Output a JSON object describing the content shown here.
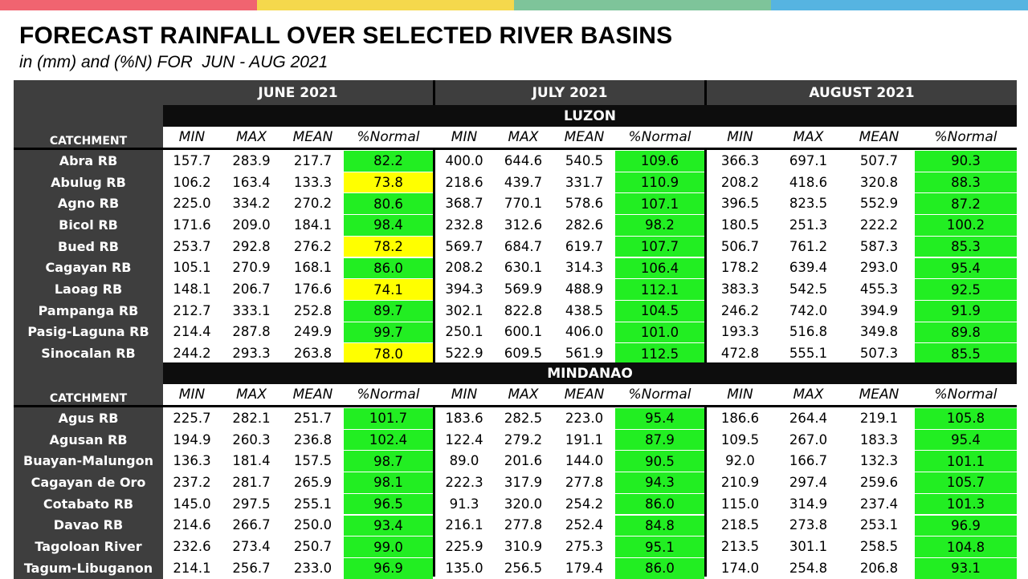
{
  "title": "FORECAST RAINFALL OVER SELECTED RIVER BASINS",
  "subtitle": "in (mm) and (%N) FOR  JUN - AUG 2021",
  "accent_colors": [
    "#f06470",
    "#f5d84c",
    "#7ec49a",
    "#56b4e1"
  ],
  "status_colors": {
    "near_normal": "#22ee22",
    "below_normal": "#ffff00"
  },
  "months": [
    "JUNE 2021",
    "JULY 2021",
    "AUGUST 2021"
  ],
  "column_labels": [
    "MIN",
    "MAX",
    "MEAN",
    "%Normal"
  ],
  "catchment_label": "CATCHMENT",
  "sections": [
    {
      "name": "LUZON",
      "rows": [
        {
          "basin": "Abra RB",
          "values": [
            [
              "157.7",
              "283.9",
              "217.7",
              "82.2"
            ],
            [
              "400.0",
              "644.6",
              "540.5",
              "109.6"
            ],
            [
              "366.3",
              "697.1",
              "507.7",
              "90.3"
            ]
          ]
        },
        {
          "basin": "Abulug RB",
          "values": [
            [
              "106.2",
              "163.4",
              "133.3",
              "73.8"
            ],
            [
              "218.6",
              "439.7",
              "331.7",
              "110.9"
            ],
            [
              "208.2",
              "418.6",
              "320.8",
              "88.3"
            ]
          ]
        },
        {
          "basin": "Agno RB",
          "values": [
            [
              "225.0",
              "334.2",
              "270.2",
              "80.6"
            ],
            [
              "368.7",
              "770.1",
              "578.6",
              "107.1"
            ],
            [
              "396.5",
              "823.5",
              "552.9",
              "87.2"
            ]
          ]
        },
        {
          "basin": "Bicol RB",
          "values": [
            [
              "171.6",
              "209.0",
              "184.1",
              "98.4"
            ],
            [
              "232.8",
              "312.6",
              "282.6",
              "98.2"
            ],
            [
              "180.5",
              "251.3",
              "222.2",
              "100.2"
            ]
          ]
        },
        {
          "basin": "Bued RB",
          "values": [
            [
              "253.7",
              "292.8",
              "276.2",
              "78.2"
            ],
            [
              "569.7",
              "684.7",
              "619.7",
              "107.7"
            ],
            [
              "506.7",
              "761.2",
              "587.3",
              "85.3"
            ]
          ]
        },
        {
          "basin": "Cagayan RB",
          "values": [
            [
              "105.1",
              "270.9",
              "168.1",
              "86.0"
            ],
            [
              "208.2",
              "630.1",
              "314.3",
              "106.4"
            ],
            [
              "178.2",
              "639.4",
              "293.0",
              "95.4"
            ]
          ]
        },
        {
          "basin": "Laoag RB",
          "values": [
            [
              "148.1",
              "206.7",
              "176.6",
              "74.1"
            ],
            [
              "394.3",
              "569.9",
              "488.9",
              "112.1"
            ],
            [
              "383.3",
              "542.5",
              "455.3",
              "92.5"
            ]
          ]
        },
        {
          "basin": "Pampanga RB",
          "values": [
            [
              "212.7",
              "333.1",
              "252.8",
              "89.7"
            ],
            [
              "302.1",
              "822.8",
              "438.5",
              "104.5"
            ],
            [
              "246.2",
              "742.0",
              "394.9",
              "91.9"
            ]
          ]
        },
        {
          "basin": "Pasig-Laguna RB",
          "values": [
            [
              "214.4",
              "287.8",
              "249.9",
              "99.7"
            ],
            [
              "250.1",
              "600.1",
              "406.0",
              "101.0"
            ],
            [
              "193.3",
              "516.8",
              "349.8",
              "89.8"
            ]
          ]
        },
        {
          "basin": "Sinocalan RB",
          "values": [
            [
              "244.2",
              "293.3",
              "263.8",
              "78.0"
            ],
            [
              "522.9",
              "609.5",
              "561.9",
              "112.5"
            ],
            [
              "472.8",
              "555.1",
              "507.3",
              "85.5"
            ]
          ]
        }
      ]
    },
    {
      "name": "MINDANAO",
      "rows": [
        {
          "basin": "Agus RB",
          "values": [
            [
              "225.7",
              "282.1",
              "251.7",
              "101.7"
            ],
            [
              "183.6",
              "282.5",
              "223.0",
              "95.4"
            ],
            [
              "186.6",
              "264.4",
              "219.1",
              "105.8"
            ]
          ]
        },
        {
          "basin": "Agusan RB",
          "values": [
            [
              "194.9",
              "260.3",
              "236.8",
              "102.4"
            ],
            [
              "122.4",
              "279.2",
              "191.1",
              "87.9"
            ],
            [
              "109.5",
              "267.0",
              "183.3",
              "95.4"
            ]
          ]
        },
        {
          "basin": "Buayan-Malungon",
          "values": [
            [
              "136.3",
              "181.4",
              "157.5",
              "98.7"
            ],
            [
              "89.0",
              "201.6",
              "144.0",
              "90.5"
            ],
            [
              "92.0",
              "166.7",
              "132.3",
              "101.1"
            ]
          ]
        },
        {
          "basin": "Cagayan de Oro",
          "values": [
            [
              "237.2",
              "281.7",
              "265.9",
              "98.1"
            ],
            [
              "222.3",
              "317.9",
              "277.8",
              "94.3"
            ],
            [
              "210.9",
              "297.4",
              "259.6",
              "105.7"
            ]
          ]
        },
        {
          "basin": "Cotabato RB",
          "values": [
            [
              "145.0",
              "297.5",
              "255.1",
              "96.5"
            ],
            [
              "91.3",
              "320.0",
              "254.2",
              "86.0"
            ],
            [
              "115.0",
              "314.9",
              "237.4",
              "101.3"
            ]
          ]
        },
        {
          "basin": "Davao RB",
          "values": [
            [
              "214.6",
              "266.7",
              "250.0",
              "93.4"
            ],
            [
              "216.1",
              "277.8",
              "252.4",
              "84.8"
            ],
            [
              "218.5",
              "273.8",
              "253.1",
              "96.9"
            ]
          ]
        },
        {
          "basin": "Tagoloan River",
          "values": [
            [
              "232.6",
              "273.4",
              "250.7",
              "99.0"
            ],
            [
              "225.9",
              "310.9",
              "275.3",
              "95.1"
            ],
            [
              "213.5",
              "301.1",
              "258.5",
              "104.8"
            ]
          ]
        },
        {
          "basin": "Tagum-Libuganon",
          "values": [
            [
              "214.1",
              "256.7",
              "233.0",
              "96.9"
            ],
            [
              "135.0",
              "256.5",
              "179.4",
              "86.0"
            ],
            [
              "174.0",
              "254.8",
              "206.8",
              "93.1"
            ]
          ]
        }
      ]
    }
  ]
}
